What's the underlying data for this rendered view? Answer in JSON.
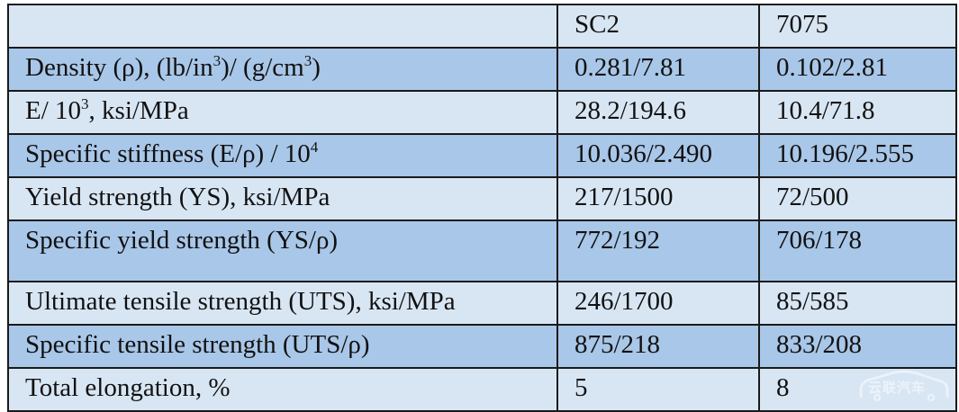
{
  "table": {
    "header": [
      "",
      "SC2",
      "7075"
    ],
    "rows": [
      {
        "property": {
          "pre": "Density (ρ), (lb/in",
          "sup1": "3",
          "mid": ")/ (g/cm",
          "sup2": "3",
          "post": ")"
        },
        "sc2": "0.281/7.81",
        "al7075": "0.102/2.81"
      },
      {
        "property": {
          "pre": "E/ 10",
          "sup1": "3",
          "post": ", ksi/MPa"
        },
        "sc2": "28.2/194.6",
        "al7075": "10.4/71.8"
      },
      {
        "property": {
          "pre": "Specific stiffness (E/ρ) / 10",
          "sup1": "4"
        },
        "sc2": "10.036/2.490",
        "al7075": "10.196/2.555"
      },
      {
        "property": {
          "pre": "Yield strength (YS), ksi/MPa"
        },
        "sc2": "217/1500",
        "al7075": "72/500"
      },
      {
        "property": {
          "pre": "Specific yield strength (YS/ρ)"
        },
        "sc2": "772/192",
        "al7075": "706/178"
      },
      {
        "property": {
          "pre": "Ultimate tensile strength (UTS), ksi/MPa"
        },
        "sc2": "246/1700",
        "al7075": "85/585"
      },
      {
        "property": {
          "pre": "Specific tensile strength (UTS/ρ)"
        },
        "sc2": "875/218",
        "al7075": "833/208"
      },
      {
        "property": {
          "pre": "Total elongation, %"
        },
        "sc2": "5",
        "al7075": "8"
      }
    ]
  },
  "watermark": {
    "text": "云联汽车",
    "icon": "car-outline-icon"
  }
}
